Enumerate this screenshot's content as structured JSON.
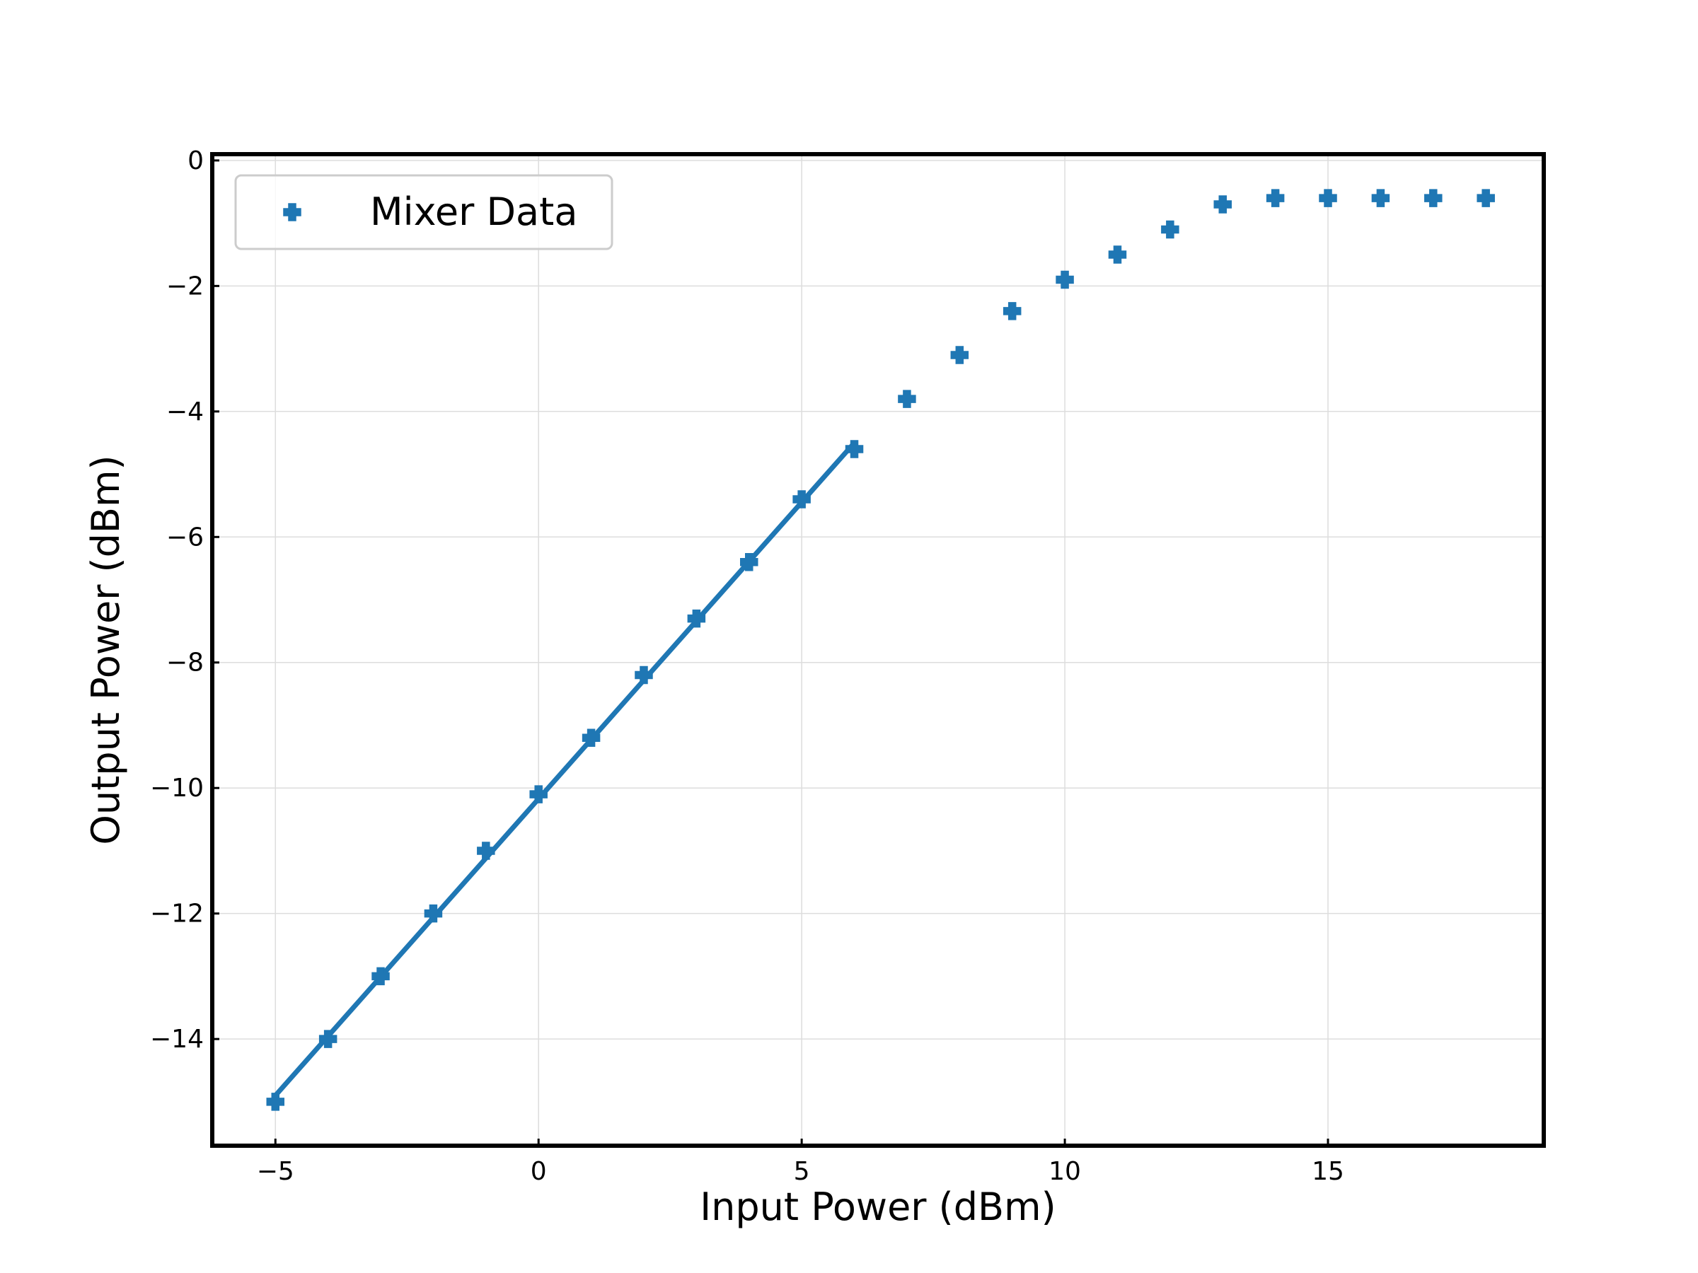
{
  "chart_data": {
    "type": "scatter",
    "title": "",
    "xlabel": "Input Power (dBm)",
    "ylabel": "Output Power (dBm)",
    "xlim": [
      -6.2,
      19.1
    ],
    "ylim": [
      -15.7,
      0.1
    ],
    "xticks": [
      -5,
      0,
      5,
      10,
      15
    ],
    "xtick_labels": [
      "−5",
      "0",
      "5",
      "10",
      "15"
    ],
    "yticks": [
      0,
      -2,
      -4,
      -6,
      -8,
      -10,
      -12,
      -14
    ],
    "ytick_labels": [
      "0",
      "−2",
      "−4",
      "−6",
      "−8",
      "−10",
      "−12",
      "−14"
    ],
    "grid": true,
    "legend_position": "top-left",
    "color": "#1f77b4",
    "series": [
      {
        "name": "Mixer Data",
        "marker": "plus-filled",
        "x": [
          -5,
          -4,
          -3,
          -2,
          -1,
          0,
          1,
          2,
          3,
          4,
          5,
          6,
          7,
          8,
          9,
          10,
          11,
          12,
          13,
          14,
          15,
          16,
          17,
          18
        ],
        "y": [
          -15,
          -14,
          -13,
          -12,
          -11,
          -10.1,
          -9.2,
          -8.2,
          -7.3,
          -6.4,
          -5.4,
          -4.6,
          -3.8,
          -3.1,
          -2.4,
          -1.9,
          -1.5,
          -1.1,
          -0.7,
          -0.6,
          -0.6,
          -0.6,
          -0.6,
          -0.6
        ]
      }
    ],
    "fit_line": {
      "x": [
        -5,
        6
      ],
      "y": [
        -14.9,
        -4.5
      ]
    },
    "legend": [
      "Mixer Data"
    ]
  }
}
